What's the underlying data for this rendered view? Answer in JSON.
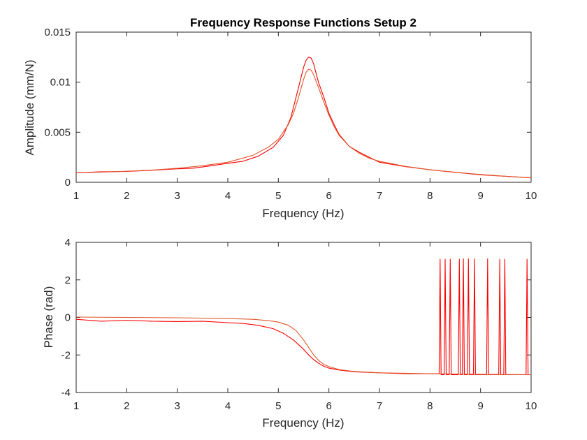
{
  "title": "Frequency Response Functions Setup 2",
  "chart_data": [
    {
      "type": "line",
      "title": "Frequency Response Functions Setup 2",
      "xlabel": "Frequency (Hz)",
      "ylabel": "Amplitude (mm/N)",
      "xlim": [
        1,
        10
      ],
      "ylim": [
        0,
        0.015
      ],
      "xticks": [
        1,
        2,
        3,
        4,
        5,
        6,
        7,
        8,
        9,
        10
      ],
      "xtick_labels": [
        "1",
        "2",
        "3",
        "4",
        "5",
        "6",
        "7",
        "8",
        "9",
        "10"
      ],
      "yticks": [
        0,
        0.005,
        0.01,
        0.015
      ],
      "ytick_labels": [
        "0",
        "0.005",
        "0.01",
        "0.015"
      ],
      "grid": false,
      "series": [
        {
          "role": "measured",
          "color": "#ff0000",
          "x": [
            1,
            1.5,
            2,
            2.5,
            3,
            3.3,
            3.6,
            4,
            4.3,
            4.6,
            4.9,
            5.1,
            5.25,
            5.4,
            5.5,
            5.55,
            5.6,
            5.65,
            5.7,
            5.75,
            5.8,
            5.9,
            6.0,
            6.1,
            6.2,
            6.4,
            6.6,
            6.8,
            7,
            7.5,
            8,
            8.5,
            9,
            9.5,
            10
          ],
          "y": [
            0.00095,
            0.00105,
            0.00108,
            0.0012,
            0.00135,
            0.0014,
            0.0016,
            0.0019,
            0.0021,
            0.0026,
            0.0035,
            0.0047,
            0.0065,
            0.0095,
            0.0115,
            0.0122,
            0.0125,
            0.0124,
            0.0118,
            0.0108,
            0.0099,
            0.0085,
            0.0069,
            0.0058,
            0.0048,
            0.0036,
            0.003,
            0.0025,
            0.002,
            0.00158,
            0.00125,
            0.001,
            0.00075,
            0.0006,
            0.00045
          ]
        },
        {
          "role": "fitted",
          "color": "#e0552a",
          "x": [
            1,
            1.5,
            2,
            2.5,
            3,
            3.5,
            4,
            4.5,
            4.8,
            5,
            5.2,
            5.3,
            5.4,
            5.5,
            5.55,
            5.6,
            5.65,
            5.7,
            5.8,
            5.9,
            6.0,
            6.1,
            6.2,
            6.4,
            6.6,
            6.8,
            7,
            7.5,
            8,
            8.5,
            9,
            9.5,
            10
          ],
          "y": [
            0.00095,
            0.00102,
            0.0011,
            0.00122,
            0.0014,
            0.00165,
            0.002,
            0.0027,
            0.0035,
            0.0043,
            0.0058,
            0.0069,
            0.0085,
            0.0103,
            0.011,
            0.0113,
            0.0112,
            0.0107,
            0.0094,
            0.008,
            0.0067,
            0.0056,
            0.0047,
            0.0036,
            0.0029,
            0.0024,
            0.0021,
            0.0016,
            0.00125,
            0.001,
            0.00078,
            0.0006,
            0.00045
          ]
        }
      ]
    },
    {
      "type": "line",
      "xlabel": "Frequency (Hz)",
      "ylabel": "Phase (rad)",
      "xlim": [
        1,
        10
      ],
      "ylim": [
        -4,
        4
      ],
      "xticks": [
        1,
        2,
        3,
        4,
        5,
        6,
        7,
        8,
        9,
        10
      ],
      "xtick_labels": [
        "1",
        "2",
        "3",
        "4",
        "5",
        "6",
        "7",
        "8",
        "9",
        "10"
      ],
      "yticks": [
        -4,
        -2,
        0,
        2,
        4
      ],
      "ytick_labels": [
        "-4",
        "-2",
        "0",
        "2",
        "4"
      ],
      "grid": false,
      "series": [
        {
          "role": "measured",
          "color": "#ff0000",
          "x": [
            1,
            1.5,
            2,
            2.5,
            3,
            3.5,
            4,
            4.3,
            4.6,
            4.9,
            5.1,
            5.3,
            5.5,
            5.6,
            5.7,
            5.8,
            5.9,
            6.0,
            6.2,
            6.5,
            7,
            7.5,
            8,
            8.18,
            8.2,
            8.22,
            8.28,
            8.3,
            8.32,
            8.38,
            8.4,
            8.42,
            8.56,
            8.58,
            8.6,
            8.64,
            8.66,
            8.68,
            8.74,
            8.76,
            8.78,
            8.86,
            8.88,
            8.9,
            9.12,
            9.14,
            9.16,
            9.36,
            9.38,
            9.4,
            9.46,
            9.48,
            9.5,
            9.9,
            9.92,
            9.94,
            10
          ],
          "y": [
            -0.1,
            -0.2,
            -0.15,
            -0.2,
            -0.22,
            -0.2,
            -0.28,
            -0.32,
            -0.42,
            -0.6,
            -0.85,
            -1.2,
            -1.7,
            -2.0,
            -2.25,
            -2.45,
            -2.6,
            -2.7,
            -2.8,
            -2.9,
            -2.95,
            -3.0,
            -3.0,
            -3.0,
            3.1,
            -3.05,
            -3.05,
            3.1,
            -3.05,
            -3.05,
            3.1,
            -3.05,
            -3.05,
            3.1,
            -3.05,
            -3.05,
            3.12,
            -3.05,
            -3.05,
            3.12,
            -3.05,
            -3.05,
            3.12,
            -3.05,
            -3.05,
            3.12,
            -3.05,
            -3.05,
            3.1,
            -3.05,
            -3.05,
            3.1,
            -3.05,
            -3.05,
            3.1,
            -3.05,
            -3.05
          ]
        },
        {
          "role": "fitted",
          "color": "#e0552a",
          "x": [
            1,
            2,
            3,
            4,
            4.5,
            4.8,
            5,
            5.2,
            5.35,
            5.5,
            5.6,
            5.7,
            5.8,
            5.9,
            6.0,
            6.2,
            6.5,
            7,
            8,
            9,
            10
          ],
          "y": [
            0.02,
            0.0,
            -0.02,
            -0.06,
            -0.1,
            -0.17,
            -0.25,
            -0.42,
            -0.7,
            -1.2,
            -1.6,
            -2.0,
            -2.3,
            -2.5,
            -2.62,
            -2.78,
            -2.88,
            -2.95,
            -3.0,
            -3.03,
            -3.05
          ]
        }
      ]
    }
  ]
}
